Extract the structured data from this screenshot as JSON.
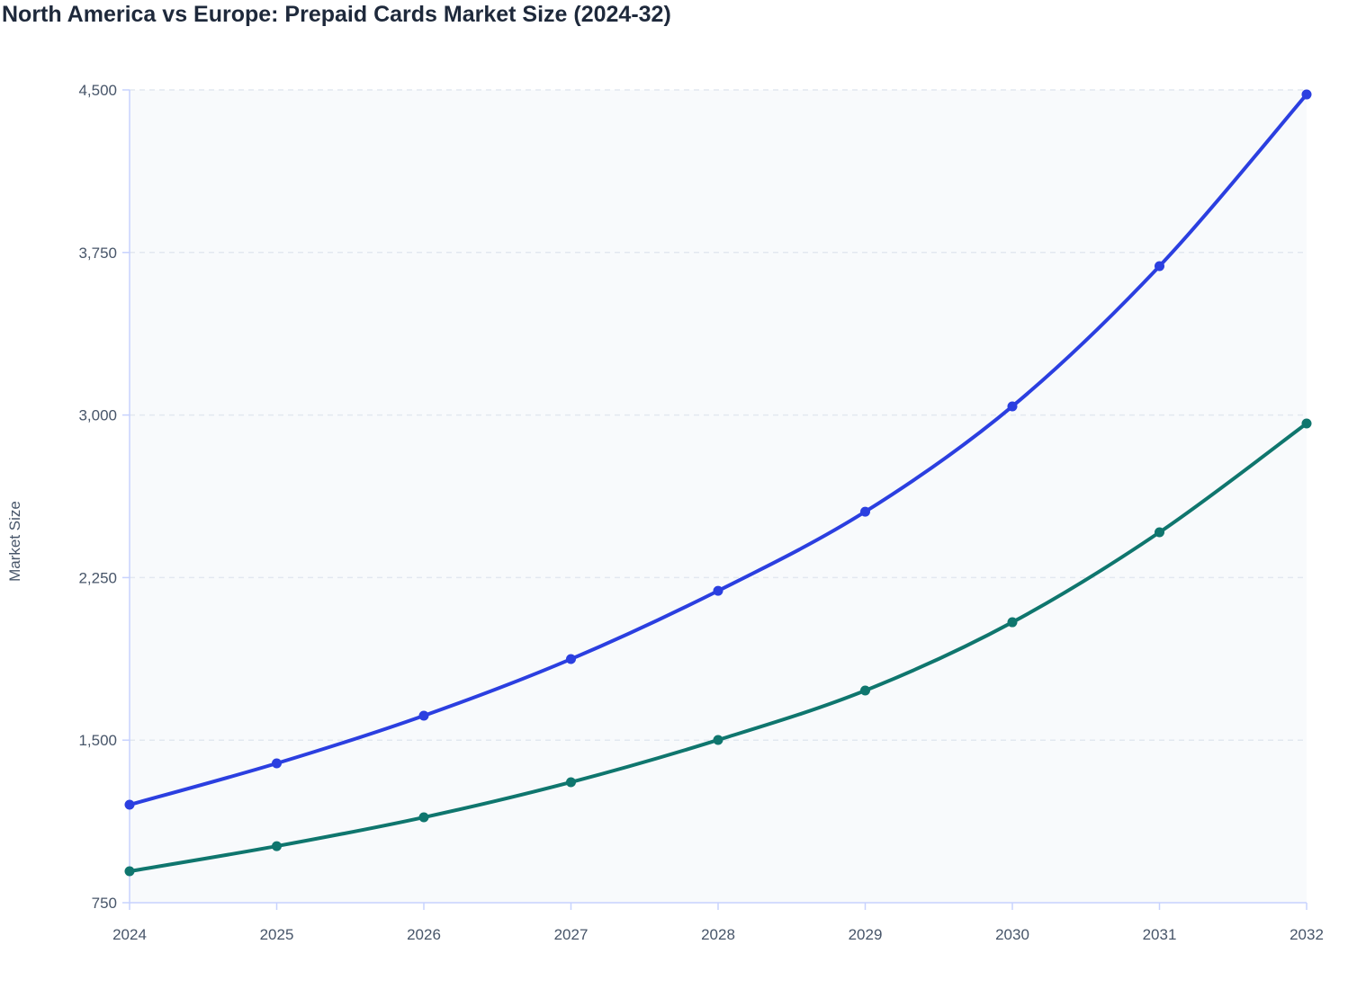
{
  "title": "North America vs Europe: Prepaid Cards Market Size (2024-32)",
  "chart_data": {
    "type": "line",
    "title": "North America vs Europe: Prepaid Cards Market Size (2024-32)",
    "xlabel": "",
    "ylabel": "Market Size",
    "x": [
      "2024",
      "2025",
      "2026",
      "2027",
      "2028",
      "2029",
      "2030",
      "2031",
      "2032"
    ],
    "ylim": [
      750,
      4500
    ],
    "yticks": [
      750,
      1500,
      2250,
      3000,
      3750,
      4500
    ],
    "ytick_labels": [
      "750",
      "1,500",
      "2,250",
      "3,000",
      "3,750",
      "4,500"
    ],
    "grid": true,
    "legend": "none",
    "series": [
      {
        "color": "#2b3fe0",
        "values": [
          1202,
          1393,
          1613,
          1874,
          2189,
          2554,
          3040,
          3687,
          4479
        ]
      },
      {
        "color": "#0f766e",
        "values": [
          895,
          1011,
          1144,
          1306,
          1501,
          1729,
          2044,
          2459,
          2961
        ]
      }
    ]
  }
}
